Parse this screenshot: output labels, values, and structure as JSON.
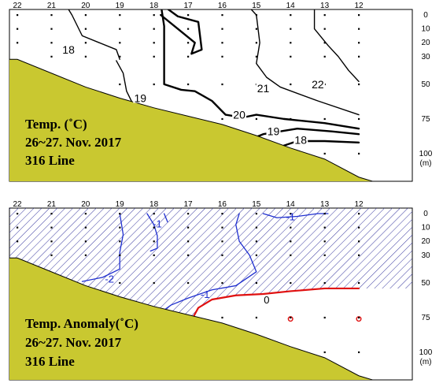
{
  "chart_data": [
    {
      "type": "contour",
      "stations": [
        "22",
        "21",
        "20",
        "19",
        "18",
        "17",
        "16",
        "15",
        "14",
        "13",
        "12"
      ],
      "depth_ticks": [
        {
          "label": "0",
          "value": 0
        },
        {
          "label": "10",
          "value": 10
        },
        {
          "label": "20",
          "value": 20
        },
        {
          "label": "30",
          "value": 30
        },
        {
          "label": "50",
          "value": 50
        },
        {
          "label": "75",
          "value": 75
        },
        {
          "label": "100",
          "value": 100
        }
      ],
      "depth_unit": "(m)",
      "ylim": [
        0,
        120
      ],
      "caption": [
        "Temp. (˚C)",
        "26~27. Nov. 2017",
        "316 Line"
      ],
      "contour_labels": [
        {
          "text": "18",
          "station": 20.5,
          "depth": 25
        },
        {
          "text": "19",
          "station": 18.4,
          "depth": 60
        },
        {
          "text": "20",
          "station": 15.5,
          "depth": 72
        },
        {
          "text": "21",
          "station": 14.8,
          "depth": 53
        },
        {
          "text": "22",
          "station": 13.2,
          "depth": 50
        },
        {
          "text": "19",
          "station": 14.5,
          "depth": 84
        },
        {
          "text": "18",
          "station": 13.7,
          "depth": 90
        }
      ],
      "seabed_depth_m": [
        {
          "station": 22.0,
          "depth": 32
        },
        {
          "station": 21.0,
          "depth": 42
        },
        {
          "station": 20.0,
          "depth": 52
        },
        {
          "station": 19.0,
          "depth": 60
        },
        {
          "station": 18.0,
          "depth": 67
        },
        {
          "station": 17.0,
          "depth": 73
        },
        {
          "station": 16.0,
          "depth": 79
        },
        {
          "station": 15.0,
          "depth": 87
        },
        {
          "station": 14.0,
          "depth": 96
        },
        {
          "station": 13.0,
          "depth": 104
        },
        {
          "station": 12.0,
          "depth": 117
        },
        {
          "station": 11.6,
          "depth": 120
        }
      ],
      "isotherms": [
        {
          "value": 18,
          "points": [
            {
              "station": 20.6,
              "depth": -8
            },
            {
              "station": 20.4,
              "depth": 0
            },
            {
              "station": 20.1,
              "depth": 15
            },
            {
              "station": 19.6,
              "depth": 20
            },
            {
              "station": 19.1,
              "depth": 25
            },
            {
              "station": 19.0,
              "depth": 32
            }
          ]
        },
        {
          "value": 19,
          "points": [
            {
              "station": 19.1,
              "depth": 33
            },
            {
              "station": 18.9,
              "depth": 42
            },
            {
              "station": 18.8,
              "depth": 55
            },
            {
              "station": 18.6,
              "depth": 65
            }
          ]
        },
        {
          "value": 20,
          "points": [
            {
              "station": 17.8,
              "depth": -8
            },
            {
              "station": 17.7,
              "depth": 8
            },
            {
              "station": 17.7,
              "depth": 50
            },
            {
              "station": 17.2,
              "depth": 54
            },
            {
              "station": 16.8,
              "depth": 55
            },
            {
              "station": 16.3,
              "depth": 62
            },
            {
              "station": 15.9,
              "depth": 72
            },
            {
              "station": 15.4,
              "depth": 74
            },
            {
              "station": 15.0,
              "depth": 72
            },
            {
              "station": 14.2,
              "depth": 75
            },
            {
              "station": 13.0,
              "depth": 78
            },
            {
              "station": 12.0,
              "depth": 82
            }
          ]
        },
        {
          "value": 20,
          "points": [
            {
              "station": 17.8,
              "depth": -8
            },
            {
              "station": 17.3,
              "depth": 1
            },
            {
              "station": 16.7,
              "depth": 5
            },
            {
              "station": 16.6,
              "depth": 25
            },
            {
              "station": 16.9,
              "depth": 28
            },
            {
              "station": 16.8,
              "depth": 20
            },
            {
              "station": 17.3,
              "depth": 10
            },
            {
              "station": 17.8,
              "depth": 0
            }
          ]
        },
        {
          "value": 21,
          "points": [
            {
              "station": 15.3,
              "depth": -8
            },
            {
              "station": 15.0,
              "depth": 0
            },
            {
              "station": 14.9,
              "depth": 20
            },
            {
              "station": 15.0,
              "depth": 35
            },
            {
              "station": 14.7,
              "depth": 45
            },
            {
              "station": 14.3,
              "depth": 52
            },
            {
              "station": 13.2,
              "depth": 62
            },
            {
              "station": 12.0,
              "depth": 72
            }
          ]
        },
        {
          "value": 22,
          "points": [
            {
              "station": 13.3,
              "depth": -8
            },
            {
              "station": 13.3,
              "depth": 10
            },
            {
              "station": 12.9,
              "depth": 22
            },
            {
              "station": 12.6,
              "depth": 30
            },
            {
              "station": 12.3,
              "depth": 40
            },
            {
              "station": 12.0,
              "depth": 48
            }
          ]
        },
        {
          "value": 19,
          "points": [
            {
              "station": 15.6,
              "depth": 94
            },
            {
              "station": 14.8,
              "depth": 86
            },
            {
              "station": 13.8,
              "depth": 82
            },
            {
              "station": 12.8,
              "depth": 84
            },
            {
              "station": 12.0,
              "depth": 86
            }
          ]
        },
        {
          "value": 18,
          "points": [
            {
              "station": 14.4,
              "depth": 96
            },
            {
              "station": 13.8,
              "depth": 91
            },
            {
              "station": 13.0,
              "depth": 91
            },
            {
              "station": 12.0,
              "depth": 92
            }
          ]
        }
      ]
    },
    {
      "type": "contour",
      "stations": [
        "22",
        "21",
        "20",
        "19",
        "18",
        "17",
        "16",
        "15",
        "14",
        "13",
        "12"
      ],
      "depth_ticks": [
        {
          "label": "0",
          "value": 0
        },
        {
          "label": "10",
          "value": 10
        },
        {
          "label": "20",
          "value": 20
        },
        {
          "label": "30",
          "value": 30
        },
        {
          "label": "50",
          "value": 50
        },
        {
          "label": "75",
          "value": 75
        },
        {
          "label": "100",
          "value": 100
        }
      ],
      "depth_unit": "(m)",
      "ylim": [
        0,
        120
      ],
      "caption": [
        "Temp. Anomaly(˚C)",
        "26~27. Nov. 2017",
        "316 Line"
      ],
      "contour_labels": [
        {
          "text": "-1",
          "station": 17.9,
          "depth": 7,
          "color": "#1f2fd0"
        },
        {
          "text": "-2",
          "station": 19.3,
          "depth": 47,
          "color": "#1f2fd0"
        },
        {
          "text": "-1",
          "station": 16.5,
          "depth": 58,
          "color": "#1f2fd0"
        },
        {
          "text": "-1",
          "station": 14.0,
          "depth": 2,
          "color": "#1f2fd0"
        },
        {
          "text": "0",
          "station": 14.7,
          "depth": 62,
          "color": "#000000"
        }
      ],
      "colors": {
        "negative_contour": "#1f2fd0",
        "zero_contour": "#e01010",
        "hatch": "#3a3aa0",
        "seabed": "#c9c830"
      },
      "seabed_depth_m": [
        {
          "station": 22.0,
          "depth": 32
        },
        {
          "station": 21.0,
          "depth": 42
        },
        {
          "station": 20.0,
          "depth": 52
        },
        {
          "station": 19.0,
          "depth": 60
        },
        {
          "station": 18.0,
          "depth": 67
        },
        {
          "station": 17.0,
          "depth": 73
        },
        {
          "station": 16.0,
          "depth": 79
        },
        {
          "station": 15.0,
          "depth": 87
        },
        {
          "station": 14.0,
          "depth": 96
        },
        {
          "station": 13.0,
          "depth": 104
        },
        {
          "station": 12.0,
          "depth": 117
        },
        {
          "station": 11.6,
          "depth": 120
        }
      ],
      "negative_region_boundary": [
        {
          "station": 16.9,
          "depth": 77
        },
        {
          "station": 16.7,
          "depth": 68
        },
        {
          "station": 16.3,
          "depth": 62
        },
        {
          "station": 15.6,
          "depth": 59
        },
        {
          "station": 14.8,
          "depth": 58
        },
        {
          "station": 14.0,
          "depth": 56
        },
        {
          "station": 13.0,
          "depth": 54
        },
        {
          "station": 12.0,
          "depth": 54
        }
      ],
      "isotherms": [
        {
          "value": -1,
          "points": [
            {
              "station": 18.2,
              "depth": 0
            },
            {
              "station": 18.0,
              "depth": 8
            },
            {
              "station": 17.9,
              "depth": 16
            },
            {
              "station": 17.9,
              "depth": 25
            },
            {
              "station": 18.1,
              "depth": 27
            }
          ]
        },
        {
          "value": -1,
          "points": [
            {
              "station": 17.7,
              "depth": 0
            },
            {
              "station": 17.6,
              "depth": 6
            }
          ]
        },
        {
          "value": -2,
          "points": [
            {
              "station": 19.0,
              "depth": 0
            },
            {
              "station": 18.9,
              "depth": 15
            },
            {
              "station": 19.0,
              "depth": 28
            },
            {
              "station": 19.0,
              "depth": 40
            },
            {
              "station": 19.5,
              "depth": 46
            },
            {
              "station": 20.1,
              "depth": 49
            }
          ]
        },
        {
          "value": -1,
          "points": [
            {
              "station": 18.0,
              "depth": 75
            },
            {
              "station": 17.5,
              "depth": 66
            },
            {
              "station": 17.0,
              "depth": 61
            },
            {
              "station": 16.3,
              "depth": 55
            },
            {
              "station": 15.6,
              "depth": 52
            },
            {
              "station": 15.0,
              "depth": 42
            },
            {
              "station": 15.2,
              "depth": 30
            },
            {
              "station": 15.5,
              "depth": 20
            },
            {
              "station": 15.6,
              "depth": 8
            },
            {
              "station": 15.5,
              "depth": 0
            }
          ]
        },
        {
          "value": -1,
          "points": [
            {
              "station": 14.8,
              "depth": 0
            },
            {
              "station": 14.4,
              "depth": 3
            },
            {
              "station": 13.8,
              "depth": 2
            },
            {
              "station": 13.2,
              "depth": 0
            },
            {
              "station": 12.9,
              "depth": 0
            }
          ]
        },
        {
          "value": 0,
          "points": [
            {
              "station": 16.9,
              "depth": 77
            },
            {
              "station": 16.7,
              "depth": 68
            },
            {
              "station": 16.3,
              "depth": 62
            },
            {
              "station": 15.6,
              "depth": 59
            },
            {
              "station": 14.8,
              "depth": 58
            },
            {
              "station": 14.0,
              "depth": 56
            },
            {
              "station": 13.0,
              "depth": 54
            },
            {
              "station": 12.0,
              "depth": 54
            }
          ]
        }
      ],
      "zero_rings": [
        {
          "station": 14.0,
          "depth": 76
        },
        {
          "station": 12.0,
          "depth": 76
        }
      ]
    }
  ]
}
